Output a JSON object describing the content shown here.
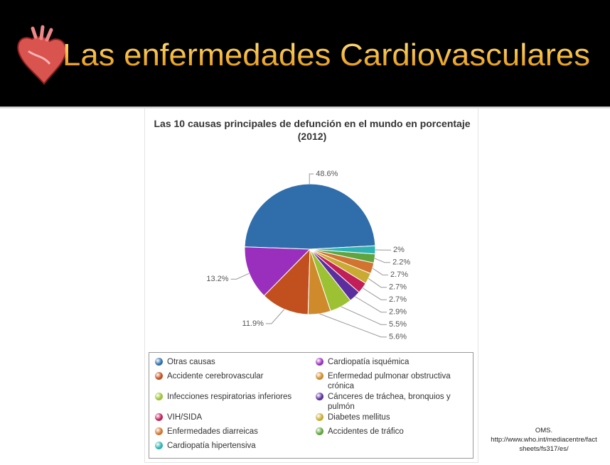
{
  "slide": {
    "title": "Las enfermedades Cardiovasculares",
    "source": [
      "OMS.",
      "http://www.who.int/mediacentre/factsheets/fs317/es/"
    ]
  },
  "chart_data": {
    "type": "pie",
    "title": "Las 10 causas principales de defunción en el mundo en porcentaje (2012)",
    "categories": [
      "Otras causas",
      "Cardiopatía isquémica",
      "Accidente cerebrovascular",
      "Enfermedad pulmonar obstructiva crónica",
      "Infecciones respiratorias inferiores",
      "Cánceres de tráchea, bronquios y pulmón",
      "VIH/SIDA",
      "Diabetes mellitus",
      "Enfermedades diarreicas",
      "Accidentes de tráfico",
      "Cardiopatía hipertensiva"
    ],
    "values": [
      48.6,
      13.2,
      11.9,
      5.6,
      5.5,
      2.9,
      2.7,
      2.7,
      2.7,
      2.2,
      2
    ],
    "value_labels": [
      "48.6%",
      "13.2%",
      "11.9%",
      "5.6%",
      "5.5%",
      "2.9%",
      "2.7%",
      "2.7%",
      "2.7%",
      "2.2%",
      "2%"
    ],
    "colors": [
      "#2f6eab",
      "#9a2fbd",
      "#c2501e",
      "#cf8a2b",
      "#9cc234",
      "#5a2e9e",
      "#c21f58",
      "#c9ab33",
      "#d2742f",
      "#5fa43d",
      "#2fb2b2"
    ],
    "legend": "bottom"
  }
}
